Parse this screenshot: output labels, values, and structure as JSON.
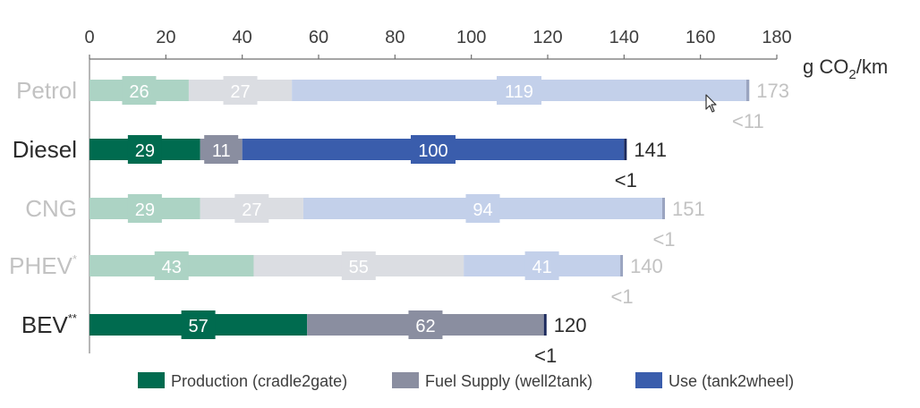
{
  "chart_data": {
    "type": "bar",
    "orientation": "horizontal",
    "stacked": true,
    "unit": "g CO",
    "unit_sub": "2",
    "unit_tail": "/km",
    "xlim": [
      0,
      180
    ],
    "xticks": [
      "0",
      "20",
      "40",
      "60",
      "80",
      "100",
      "120",
      "140",
      "160",
      "180"
    ],
    "categories": [
      {
        "label": "Petrol",
        "sup": "",
        "highlighted": false
      },
      {
        "label": "Diesel",
        "sup": "",
        "highlighted": true
      },
      {
        "label": "CNG",
        "sup": "",
        "highlighted": false
      },
      {
        "label": "PHEV",
        "sup": "*",
        "highlighted": false
      },
      {
        "label": "BEV",
        "sup": "**",
        "highlighted": true
      }
    ],
    "series": [
      {
        "name": "Production (cradle2gate)",
        "values": [
          26,
          29,
          29,
          43,
          57
        ],
        "labels": [
          "26",
          "29",
          "29",
          "43",
          "57"
        ]
      },
      {
        "name": "Fuel Supply (well2tank)",
        "values": [
          27,
          11,
          27,
          55,
          62
        ],
        "labels": [
          "27",
          "11",
          "27",
          "55",
          "62"
        ]
      },
      {
        "name": "Use (tank2wheel)",
        "values": [
          119,
          100,
          94,
          41,
          0
        ],
        "labels": [
          "119",
          "100",
          "94",
          "41",
          ""
        ]
      }
    ],
    "residual": {
      "values": [
        0.8,
        0.6,
        0.6,
        0.6,
        0.6
      ],
      "labels": [
        "<11",
        "<1",
        "<1",
        "<1",
        "<1"
      ]
    },
    "totals": [
      "173",
      "141",
      "151",
      "140",
      "120"
    ],
    "colors": {
      "production": "#006b4f",
      "fuel_supply": "#8a8ea0",
      "use": "#3a5dac",
      "residual": "#1c2a5c",
      "production_faded": "#acd3c4",
      "fuel_supply_faded": "#dbdde2",
      "use_faded": "#c3d0ea",
      "residual_faded": "#9aa4c0",
      "text_active": "#2b2b2b",
      "text_faded": "#c2c2c2",
      "axis": "#6f6f6f"
    }
  }
}
